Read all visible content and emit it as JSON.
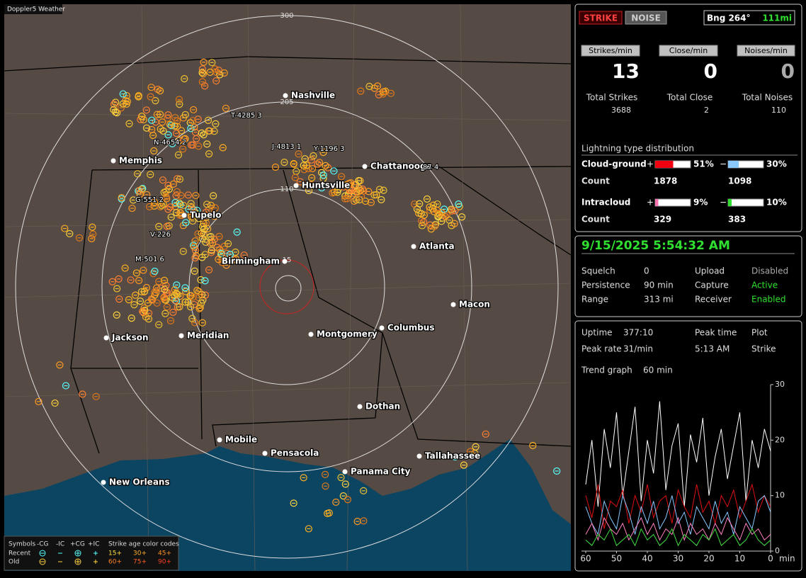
{
  "map": {
    "title": "Doppler5 Weather",
    "ring_labels": [
      "300",
      "205",
      "110",
      "15"
    ],
    "cities": [
      "Nashville",
      "Memphis",
      "Chattanooga",
      "Huntsville",
      "Tupelo",
      "Birmingham",
      "Atlanta",
      "Macon",
      "Jackson",
      "Meridian",
      "Montgomery",
      "Columbus",
      "Dothan",
      "Mobile",
      "Pensacola",
      "Tallahassee",
      "Panama City",
      "New Orleans"
    ],
    "sensors": [
      "T-4285 3",
      "N-4654 2",
      "J-4813 1",
      "Y-1196 3",
      "G-551 2",
      "V-226",
      "M-501 6",
      "87 4"
    ]
  },
  "legend": {
    "symbols_label": "Symbols",
    "symbol_names": [
      "-CG",
      "-IC",
      "+CG",
      "+IC"
    ],
    "age_title": "Strike age color codes",
    "rows": [
      "Recent",
      "Old"
    ],
    "age_labels": [
      "15+",
      "30+",
      "45+",
      "60+",
      "75+",
      "90+"
    ]
  },
  "status": {
    "strike_button": "STRIKE",
    "noise_button": "NOISE",
    "bearing": "Bng 264°",
    "distance": "111mi",
    "rates": [
      {
        "label": "Strikes/min",
        "value": 13
      },
      {
        "label": "Close/min",
        "value": 0
      },
      {
        "label": "Noises/min",
        "value": 0
      }
    ],
    "totals": [
      {
        "label": "Total Strikes",
        "value": 3688
      },
      {
        "label": "Total Close",
        "value": 2
      },
      {
        "label": "Total Noises",
        "value": 110
      }
    ],
    "distribution": {
      "title": "Lightning type distribution",
      "count_label": "Count",
      "types": [
        {
          "name": "Cloud-ground",
          "signs": [
            "+",
            "−"
          ],
          "pct": [
            51,
            30
          ],
          "pct_labels": [
            "51%",
            "30%"
          ],
          "counts": [
            1878,
            1098
          ]
        },
        {
          "name": "Intracloud",
          "signs": [
            "+",
            "−"
          ],
          "pct": [
            9,
            10
          ],
          "pct_labels": [
            "9%",
            "10%"
          ],
          "counts": [
            329,
            383
          ]
        }
      ]
    }
  },
  "clock": {
    "datetime": "9/15/2025 5:54:32 AM",
    "rows": [
      [
        "Squelch",
        "0",
        "Upload",
        "Disabled"
      ],
      [
        "Persistence",
        "90 min",
        "Capture",
        "Active"
      ],
      [
        "Range",
        "313 mi",
        "Receiver",
        "Enabled"
      ]
    ]
  },
  "stats": {
    "rows": [
      [
        "Uptime",
        "377:10",
        "Peak time",
        "Plot"
      ],
      [
        "Peak rate",
        "31/min",
        "5:13 AM",
        "Strike"
      ]
    ],
    "trend_label": "Trend graph",
    "trend_window": "60 min"
  },
  "chart_data": {
    "type": "line",
    "x": [
      60,
      58,
      56,
      54,
      52,
      50,
      48,
      46,
      44,
      42,
      40,
      38,
      36,
      34,
      32,
      30,
      28,
      26,
      24,
      22,
      20,
      18,
      16,
      14,
      12,
      10,
      8,
      6,
      4,
      2,
      0
    ],
    "xlim": [
      60,
      0
    ],
    "xticks": [
      60,
      50,
      40,
      30,
      20,
      10,
      0
    ],
    "x_unit": "min",
    "ylim": [
      0,
      30
    ],
    "yticks": [
      0,
      10,
      20,
      30
    ],
    "series": [
      {
        "color": "#ffffff",
        "values": [
          12,
          20,
          8,
          22,
          15,
          25,
          10,
          18,
          26,
          9,
          20,
          14,
          27,
          11,
          19,
          23,
          8,
          21,
          16,
          24,
          10,
          17,
          22,
          13,
          19,
          25,
          9,
          20,
          15,
          22,
          18
        ]
      },
      {
        "color": "#e01010",
        "values": [
          10,
          6,
          12,
          4,
          9,
          8,
          11,
          5,
          10,
          7,
          12,
          6,
          9,
          10,
          5,
          11,
          8,
          6,
          12,
          7,
          9,
          5,
          10,
          8,
          11,
          6,
          9,
          12,
          7,
          10,
          8
        ]
      },
      {
        "color": "#88c8ff",
        "values": [
          8,
          5,
          3,
          9,
          6,
          4,
          10,
          7,
          3,
          8,
          5,
          9,
          4,
          6,
          10,
          5,
          7,
          3,
          8,
          6,
          4,
          9,
          5,
          7,
          3,
          8,
          6,
          4,
          9,
          10,
          7
        ]
      },
      {
        "color": "#ff80c0",
        "values": [
          3,
          5,
          2,
          6,
          4,
          3,
          5,
          2,
          4,
          6,
          3,
          5,
          2,
          4,
          3,
          6,
          2,
          5,
          3,
          4,
          2,
          5,
          3,
          6,
          4,
          2,
          5,
          3,
          4,
          2,
          3
        ]
      },
      {
        "color": "#40e040",
        "values": [
          2,
          1,
          3,
          2,
          4,
          1,
          2,
          3,
          1,
          4,
          2,
          3,
          1,
          2,
          4,
          1,
          3,
          2,
          1,
          3,
          2,
          4,
          1,
          2,
          3,
          1,
          2,
          4,
          2,
          1,
          2
        ]
      }
    ]
  }
}
